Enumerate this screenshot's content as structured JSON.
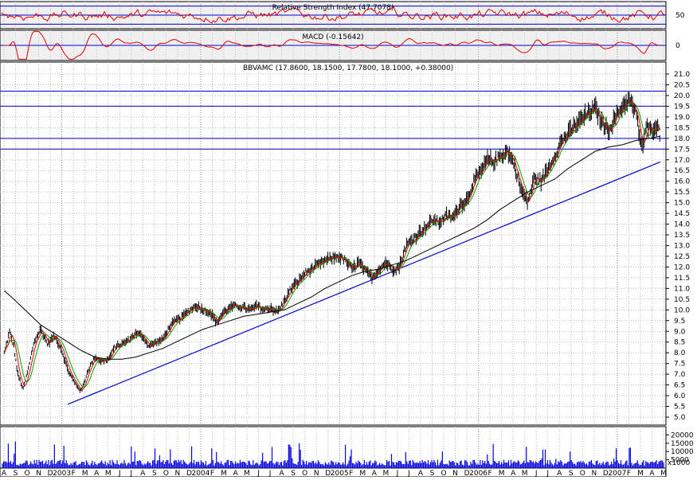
{
  "chart_data": [
    {
      "panel": "rsi",
      "type": "line",
      "title": "Relative Strength Index (47.7078)",
      "y_ticks": [
        "50"
      ],
      "ylim": [
        20,
        80
      ],
      "reference_lines": [
        30,
        50,
        70
      ],
      "grid": true,
      "colors": {
        "line": "#e00000",
        "reference": "#0000cc"
      }
    },
    {
      "panel": "macd",
      "type": "line",
      "title": "MACD (-0.15642)",
      "y_ticks": [
        "0"
      ],
      "ylim": [
        -0.6,
        0.6
      ],
      "reference_lines": [
        0
      ],
      "grid": true,
      "colors": {
        "line": "#e00000",
        "reference": "#0000cc"
      }
    },
    {
      "panel": "price",
      "type": "line",
      "title": "BBVAMC (17.8600, 18.1500, 17.7800, 18.1000, +0.38000)",
      "y_ticks": [
        "21.0",
        "20.5",
        "20.0",
        "19.5",
        "19.0",
        "18.5",
        "18.0",
        "17.5",
        "17.0",
        "16.5",
        "16.0",
        "15.5",
        "15.0",
        "14.5",
        "14.0",
        "13.5",
        "13.0",
        "12.5",
        "12.0",
        "11.5",
        "11.0",
        "10.5",
        "10.0",
        "9.5",
        "9.0",
        "8.5",
        "8.0",
        "7.5",
        "7.0",
        "6.5",
        "6.0",
        "5.5",
        "5.0"
      ],
      "ylim": [
        4.8,
        21.3
      ],
      "grid": true,
      "x_labels": [
        "A",
        "S",
        "O",
        "N",
        "D",
        "2003",
        "F",
        "M",
        "A",
        "M",
        "J",
        "J",
        "A",
        "S",
        "O",
        "N",
        "D",
        "2004",
        "F",
        "M",
        "A",
        "M",
        "J",
        "J",
        "A",
        "S",
        "O",
        "N",
        "D",
        "2005",
        "F",
        "M",
        "A",
        "M",
        "J",
        "J",
        "A",
        "S",
        "O",
        "N",
        "D",
        "2006",
        "F",
        "M",
        "A",
        "M",
        "J",
        "J",
        "A",
        "S",
        "O",
        "N",
        "D",
        "2007",
        "F",
        "M",
        "A",
        "M"
      ],
      "close_trace": [
        [
          2002.58,
          8.0
        ],
        [
          2002.62,
          9.0
        ],
        [
          2002.65,
          8.3
        ],
        [
          2002.68,
          7.0
        ],
        [
          2002.72,
          6.3
        ],
        [
          2002.76,
          7.3
        ],
        [
          2002.8,
          8.5
        ],
        [
          2002.85,
          9.1
        ],
        [
          2002.9,
          8.4
        ],
        [
          2002.95,
          8.8
        ],
        [
          2003.0,
          8.2
        ],
        [
          2003.05,
          7.2
        ],
        [
          2003.1,
          6.6
        ],
        [
          2003.15,
          6.2
        ],
        [
          2003.2,
          7.2
        ],
        [
          2003.25,
          7.8
        ],
        [
          2003.3,
          7.6
        ],
        [
          2003.35,
          7.7
        ],
        [
          2003.4,
          8.3
        ],
        [
          2003.45,
          8.4
        ],
        [
          2003.5,
          8.6
        ],
        [
          2003.55,
          8.9
        ],
        [
          2003.6,
          8.8
        ],
        [
          2003.65,
          8.3
        ],
        [
          2003.7,
          8.5
        ],
        [
          2003.75,
          8.6
        ],
        [
          2003.8,
          9.2
        ],
        [
          2003.85,
          9.5
        ],
        [
          2003.9,
          9.7
        ],
        [
          2003.95,
          10.0
        ],
        [
          2004.0,
          10.2
        ],
        [
          2004.05,
          10.0
        ],
        [
          2004.1,
          9.9
        ],
        [
          2004.15,
          9.4
        ],
        [
          2004.2,
          9.9
        ],
        [
          2004.25,
          10.1
        ],
        [
          2004.3,
          10.2
        ],
        [
          2004.35,
          10.1
        ],
        [
          2004.4,
          10.0
        ],
        [
          2004.45,
          10.2
        ],
        [
          2004.5,
          10.0
        ],
        [
          2004.55,
          10.1
        ],
        [
          2004.6,
          9.9
        ],
        [
          2004.65,
          10.4
        ],
        [
          2004.7,
          11.0
        ],
        [
          2004.75,
          11.3
        ],
        [
          2004.8,
          11.7
        ],
        [
          2004.85,
          11.9
        ],
        [
          2004.9,
          12.1
        ],
        [
          2004.95,
          12.3
        ],
        [
          2005.0,
          12.4
        ],
        [
          2005.05,
          12.5
        ],
        [
          2005.1,
          12.3
        ],
        [
          2005.15,
          11.9
        ],
        [
          2005.2,
          12.2
        ],
        [
          2005.25,
          11.8
        ],
        [
          2005.3,
          11.5
        ],
        [
          2005.35,
          11.9
        ],
        [
          2005.4,
          12.2
        ],
        [
          2005.45,
          11.9
        ],
        [
          2005.5,
          12.0
        ],
        [
          2005.55,
          13.0
        ],
        [
          2005.6,
          13.3
        ],
        [
          2005.65,
          13.6
        ],
        [
          2005.7,
          13.9
        ],
        [
          2005.75,
          14.2
        ],
        [
          2005.8,
          14.1
        ],
        [
          2005.85,
          14.4
        ],
        [
          2005.9,
          14.3
        ],
        [
          2005.95,
          14.9
        ],
        [
          2006.0,
          15.1
        ],
        [
          2006.05,
          16.0
        ],
        [
          2006.1,
          16.4
        ],
        [
          2006.15,
          17.0
        ],
        [
          2006.2,
          16.9
        ],
        [
          2006.25,
          17.2
        ],
        [
          2006.3,
          17.4
        ],
        [
          2006.35,
          16.8
        ],
        [
          2006.4,
          15.6
        ],
        [
          2006.45,
          15.0
        ],
        [
          2006.5,
          16.2
        ],
        [
          2006.55,
          16.0
        ],
        [
          2006.6,
          16.6
        ],
        [
          2006.65,
          17.2
        ],
        [
          2006.7,
          17.9
        ],
        [
          2006.75,
          18.2
        ],
        [
          2006.8,
          18.6
        ],
        [
          2006.85,
          18.9
        ],
        [
          2006.9,
          19.2
        ],
        [
          2006.95,
          19.4
        ],
        [
          2007.0,
          18.7
        ],
        [
          2007.05,
          18.4
        ],
        [
          2007.1,
          19.0
        ],
        [
          2007.15,
          19.5
        ],
        [
          2007.2,
          19.8
        ],
        [
          2007.25,
          19.2
        ],
        [
          2007.28,
          18.0
        ],
        [
          2007.3,
          17.6
        ],
        [
          2007.33,
          18.6
        ],
        [
          2007.36,
          18.3
        ],
        [
          2007.4,
          18.7
        ],
        [
          2007.43,
          18.1
        ]
      ],
      "moving_average_200": [
        [
          2002.58,
          10.9
        ],
        [
          2002.65,
          10.5
        ],
        [
          2002.75,
          9.9
        ],
        [
          2002.85,
          9.3
        ],
        [
          2002.95,
          8.9
        ],
        [
          2003.05,
          8.5
        ],
        [
          2003.15,
          8.1
        ],
        [
          2003.25,
          7.8
        ],
        [
          2003.35,
          7.7
        ],
        [
          2003.45,
          7.7
        ],
        [
          2003.55,
          7.8
        ],
        [
          2003.65,
          8.0
        ],
        [
          2003.75,
          8.2
        ],
        [
          2003.85,
          8.5
        ],
        [
          2003.95,
          8.8
        ],
        [
          2004.05,
          9.1
        ],
        [
          2004.15,
          9.3
        ],
        [
          2004.25,
          9.5
        ],
        [
          2004.35,
          9.7
        ],
        [
          2004.45,
          9.8
        ],
        [
          2004.55,
          9.9
        ],
        [
          2004.65,
          10.0
        ],
        [
          2004.75,
          10.3
        ],
        [
          2004.85,
          10.6
        ],
        [
          2004.95,
          11.0
        ],
        [
          2005.05,
          11.3
        ],
        [
          2005.15,
          11.6
        ],
        [
          2005.25,
          11.8
        ],
        [
          2005.35,
          11.9
        ],
        [
          2005.45,
          12.1
        ],
        [
          2005.55,
          12.3
        ],
        [
          2005.65,
          12.6
        ],
        [
          2005.75,
          12.9
        ],
        [
          2005.85,
          13.2
        ],
        [
          2005.95,
          13.5
        ],
        [
          2006.05,
          13.8
        ],
        [
          2006.15,
          14.2
        ],
        [
          2006.25,
          14.7
        ],
        [
          2006.35,
          15.1
        ],
        [
          2006.45,
          15.5
        ],
        [
          2006.55,
          15.8
        ],
        [
          2006.65,
          16.1
        ],
        [
          2006.75,
          16.6
        ],
        [
          2006.85,
          17.0
        ],
        [
          2006.95,
          17.4
        ],
        [
          2007.05,
          17.6
        ],
        [
          2007.15,
          17.7
        ],
        [
          2007.25,
          17.9
        ],
        [
          2007.35,
          18.0
        ],
        [
          2007.43,
          18.1
        ]
      ],
      "trendline": {
        "start": [
          2003.05,
          5.6
        ],
        "end": [
          2007.43,
          16.9
        ]
      },
      "horizontal_lines": [
        20.2,
        19.5,
        18.0,
        17.5
      ],
      "colors": {
        "price": "#000000",
        "ma_short": "#00a000",
        "ma_short2": "#e00000",
        "ma_long": "#000000",
        "trend": "#0000cc",
        "hline": "#0000cc"
      }
    },
    {
      "panel": "volume",
      "type": "bar",
      "y_ticks": [
        "20000",
        "15000",
        "10000",
        "5000"
      ],
      "scale_label": "x1000",
      "ylim": [
        0,
        25000
      ],
      "colors": {
        "bar": "#0000dd"
      }
    }
  ]
}
